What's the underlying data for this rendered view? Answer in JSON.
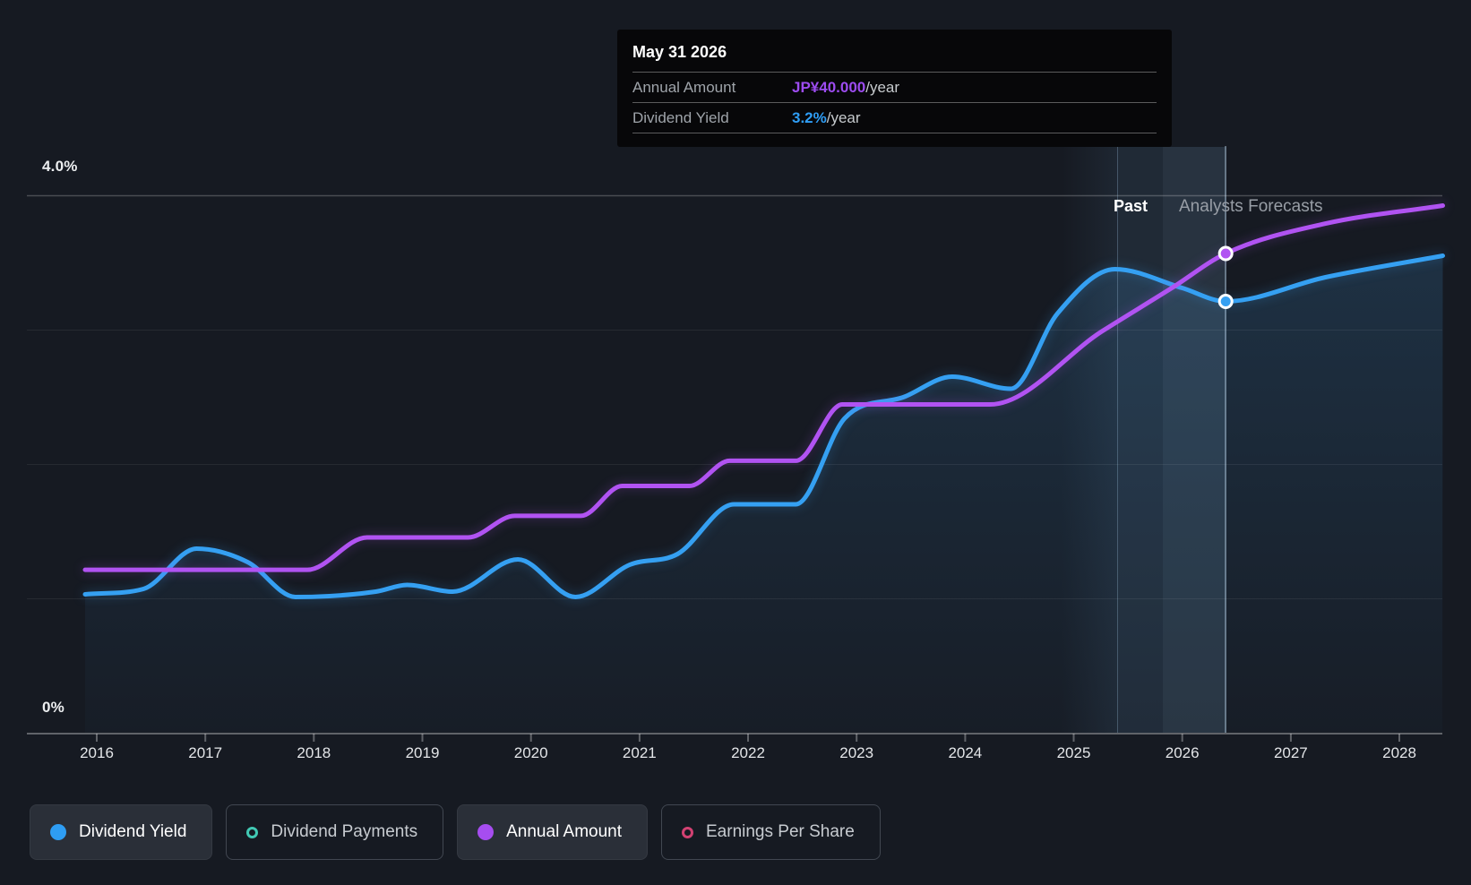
{
  "tooltip": {
    "date": "May 31 2026",
    "rows": [
      {
        "label": "Annual Amount",
        "value": "JP¥40.000",
        "suffix": "/year",
        "color": "#9d4cf0"
      },
      {
        "label": "Dividend Yield",
        "value": "3.2%",
        "suffix": "/year",
        "color": "#2f9df5"
      }
    ]
  },
  "axis": {
    "y_top_label": "4.0%",
    "y_bottom_label": "0%"
  },
  "regions": {
    "past_label": "Past",
    "forecast_label": "Analysts Forecasts"
  },
  "legend": [
    {
      "label": "Dividend Yield",
      "color": "#2e9df3",
      "style": "filled",
      "active": true
    },
    {
      "label": "Dividend Payments",
      "color": "#41c9b4",
      "style": "ring",
      "active": false
    },
    {
      "label": "Annual Amount",
      "color": "#a64df0",
      "style": "filled",
      "active": true
    },
    {
      "label": "Earnings Per Share",
      "color": "#d24172",
      "style": "ring",
      "active": false
    }
  ],
  "chart_data": {
    "type": "line",
    "title": "Dividend history and forecast",
    "x_axis": {
      "range": [
        2015.89,
        2028.4
      ],
      "ticks": [
        "2016",
        "2017",
        "2018",
        "2019",
        "2020",
        "2021",
        "2022",
        "2023",
        "2024",
        "2025",
        "2026",
        "2027",
        "2028"
      ]
    },
    "y_axis_yield": {
      "label": "Dividend Yield",
      "unit": "%",
      "min": 0,
      "max": 4.0,
      "shown_gridlines_pct": [
        1,
        2,
        3,
        4
      ]
    },
    "y_axis_amount": {
      "label": "Annual Amount",
      "unit": "JP¥/year",
      "min": 0,
      "max_at_top_gridline": 44.9
    },
    "legend_position": "bottom",
    "grid": true,
    "forecast_start_year": 2025.4,
    "hover": {
      "date": "May 31 2026",
      "year": 2026.4,
      "yield_pct": 3.21,
      "amount_jpy": 40.0
    },
    "series": [
      {
        "name": "Dividend Yield",
        "unit": "%",
        "color": "#35a0f2",
        "area_fill": true,
        "points": [
          [
            2015.893,
            1.03
          ],
          [
            2016.43,
            1.07
          ],
          [
            2016.92,
            1.37
          ],
          [
            2017.39,
            1.27
          ],
          [
            2017.83,
            1.01
          ],
          [
            2018.57,
            1.05
          ],
          [
            2018.86,
            1.1
          ],
          [
            2019.28,
            1.05
          ],
          [
            2019.88,
            1.29
          ],
          [
            2020.41,
            1.01
          ],
          [
            2020.91,
            1.25
          ],
          [
            2021.35,
            1.33
          ],
          [
            2021.87,
            1.7
          ],
          [
            2022.44,
            1.7
          ],
          [
            2022.89,
            2.34
          ],
          [
            2023.44,
            2.5
          ],
          [
            2023.88,
            2.65
          ],
          [
            2024.42,
            2.56
          ],
          [
            2024.85,
            3.12
          ],
          [
            2025.38,
            3.45
          ],
          [
            2026.0,
            3.31
          ],
          [
            2026.4,
            3.21
          ],
          [
            2027.32,
            3.39
          ],
          [
            2028.4,
            3.55
          ]
        ]
      },
      {
        "name": "Annual Amount",
        "unit": "JP¥/year",
        "color": "#b153f2",
        "area_fill": false,
        "points": [
          [
            2015.893,
            13.6
          ],
          [
            2017.94,
            13.6
          ],
          [
            2018.49,
            16.3
          ],
          [
            2019.42,
            16.3
          ],
          [
            2019.85,
            18.1
          ],
          [
            2020.46,
            18.1
          ],
          [
            2020.84,
            20.6
          ],
          [
            2021.46,
            20.6
          ],
          [
            2021.83,
            22.7
          ],
          [
            2022.44,
            22.7
          ],
          [
            2022.87,
            27.4
          ],
          [
            2024.23,
            27.4
          ],
          [
            2025.26,
            33.5
          ],
          [
            2025.9,
            37.1
          ],
          [
            2026.4,
            40.0
          ],
          [
            2027.32,
            42.5
          ],
          [
            2028.4,
            44.0
          ]
        ]
      }
    ]
  },
  "colors": {
    "background": "#161a22",
    "yield_line": "#35a0f2",
    "amount_line": "#b153f2",
    "payments": "#41c9b4",
    "eps": "#d24172",
    "tooltip_bg": "#070709",
    "muted_text": "#9fa4aa"
  }
}
